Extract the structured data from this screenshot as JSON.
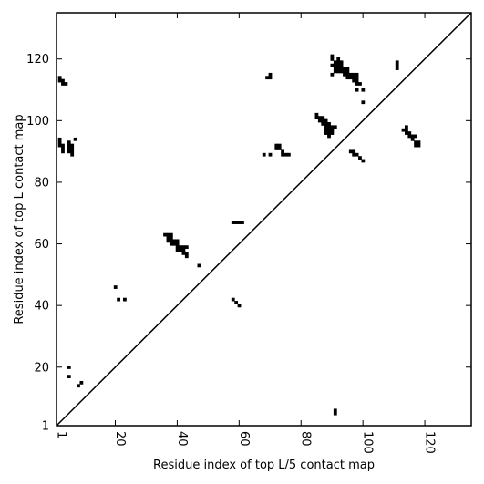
{
  "chart_data": {
    "type": "scatter",
    "xlabel": "Residue index of top L/5 contact map",
    "ylabel": "Residue index of top L contact map",
    "xlim": [
      1,
      135
    ],
    "ylim": [
      1,
      135
    ],
    "x_ticks": [
      1,
      20,
      40,
      60,
      80,
      100,
      120
    ],
    "y_ticks": [
      1,
      20,
      40,
      60,
      80,
      100,
      120
    ],
    "x_tick_labels": [
      "1",
      "20",
      "40",
      "60",
      "80",
      "100",
      "120"
    ],
    "y_tick_labels": [
      "1",
      "20",
      "40",
      "60",
      "80",
      "100",
      "120"
    ],
    "diagonal": true,
    "grid": false,
    "marker_color": "#000000",
    "upper_triangle_points": [
      [
        2,
        94
      ],
      [
        2,
        93
      ],
      [
        2,
        92
      ],
      [
        3,
        92
      ],
      [
        3,
        91
      ],
      [
        3,
        90
      ],
      [
        5,
        93
      ],
      [
        5,
        92
      ],
      [
        5,
        91
      ],
      [
        5,
        90
      ],
      [
        6,
        92
      ],
      [
        6,
        91
      ],
      [
        6,
        90
      ],
      [
        6,
        89
      ],
      [
        7,
        94
      ],
      [
        2,
        114
      ],
      [
        2,
        113
      ],
      [
        3,
        113
      ],
      [
        3,
        112
      ],
      [
        4,
        112
      ],
      [
        20,
        46
      ],
      [
        21,
        42
      ],
      [
        23,
        42
      ],
      [
        36,
        63
      ],
      [
        37,
        63
      ],
      [
        37,
        62
      ],
      [
        37,
        61
      ],
      [
        38,
        63
      ],
      [
        38,
        62
      ],
      [
        38,
        61
      ],
      [
        38,
        60
      ],
      [
        39,
        61
      ],
      [
        39,
        60
      ],
      [
        40,
        61
      ],
      [
        40,
        60
      ],
      [
        40,
        59
      ],
      [
        40,
        58
      ],
      [
        41,
        59
      ],
      [
        41,
        58
      ],
      [
        42,
        59
      ],
      [
        42,
        58
      ],
      [
        42,
        57
      ],
      [
        43,
        59
      ],
      [
        43,
        57
      ],
      [
        43,
        56
      ],
      [
        47,
        53
      ],
      [
        58,
        67
      ],
      [
        59,
        67
      ],
      [
        60,
        67
      ],
      [
        61,
        67
      ],
      [
        58,
        42
      ],
      [
        59,
        41
      ],
      [
        60,
        40
      ],
      [
        68,
        89
      ],
      [
        69,
        114
      ],
      [
        70,
        114
      ],
      [
        70,
        115
      ],
      [
        70,
        89
      ],
      [
        72,
        92
      ],
      [
        73,
        92
      ],
      [
        72,
        91
      ],
      [
        73,
        91
      ],
      [
        74,
        90
      ],
      [
        74,
        89
      ],
      [
        75,
        89
      ],
      [
        76,
        89
      ],
      [
        85,
        102
      ],
      [
        85,
        101
      ],
      [
        86,
        101
      ],
      [
        87,
        101
      ],
      [
        86,
        100
      ],
      [
        87,
        100
      ],
      [
        87,
        99
      ],
      [
        88,
        100
      ],
      [
        88,
        99
      ],
      [
        88,
        98
      ],
      [
        88,
        97
      ],
      [
        88,
        96
      ],
      [
        89,
        99
      ],
      [
        89,
        98
      ],
      [
        89,
        97
      ],
      [
        89,
        96
      ],
      [
        89,
        95
      ],
      [
        90,
        98
      ],
      [
        90,
        97
      ],
      [
        90,
        96
      ],
      [
        91,
        98
      ],
      [
        90,
        121
      ],
      [
        90,
        120
      ],
      [
        90,
        118
      ],
      [
        90,
        115
      ],
      [
        91,
        119
      ],
      [
        91,
        118
      ],
      [
        91,
        117
      ],
      [
        91,
        116
      ],
      [
        92,
        120
      ],
      [
        92,
        119
      ],
      [
        92,
        118
      ],
      [
        92,
        117
      ],
      [
        92,
        116
      ],
      [
        93,
        119
      ],
      [
        93,
        118
      ],
      [
        93,
        117
      ],
      [
        93,
        116
      ],
      [
        94,
        117
      ],
      [
        94,
        116
      ],
      [
        94,
        115
      ],
      [
        95,
        117
      ],
      [
        95,
        116
      ],
      [
        95,
        115
      ],
      [
        95,
        114
      ],
      [
        96,
        115
      ],
      [
        96,
        114
      ],
      [
        97,
        115
      ],
      [
        97,
        114
      ],
      [
        97,
        113
      ],
      [
        98,
        115
      ],
      [
        98,
        114
      ],
      [
        98,
        113
      ],
      [
        98,
        112
      ],
      [
        99,
        112
      ],
      [
        98,
        110
      ],
      [
        100,
        110
      ],
      [
        100,
        106
      ],
      [
        96,
        90
      ],
      [
        97,
        90
      ],
      [
        97,
        89
      ],
      [
        98,
        89
      ],
      [
        99,
        88
      ],
      [
        100,
        87
      ],
      [
        111,
        119
      ],
      [
        111,
        118
      ],
      [
        111,
        117
      ],
      [
        113,
        97
      ],
      [
        114,
        98
      ],
      [
        114,
        97
      ],
      [
        114,
        96
      ],
      [
        115,
        96
      ],
      [
        115,
        95
      ],
      [
        116,
        95
      ],
      [
        116,
        94
      ],
      [
        117,
        95
      ],
      [
        117,
        93
      ],
      [
        117,
        92
      ],
      [
        118,
        93
      ],
      [
        118,
        92
      ]
    ],
    "lower_triangle_points": [
      [
        5,
        20
      ],
      [
        5,
        17
      ],
      [
        8,
        14
      ],
      [
        9,
        15
      ],
      [
        91,
        6
      ],
      [
        91,
        5
      ]
    ]
  }
}
